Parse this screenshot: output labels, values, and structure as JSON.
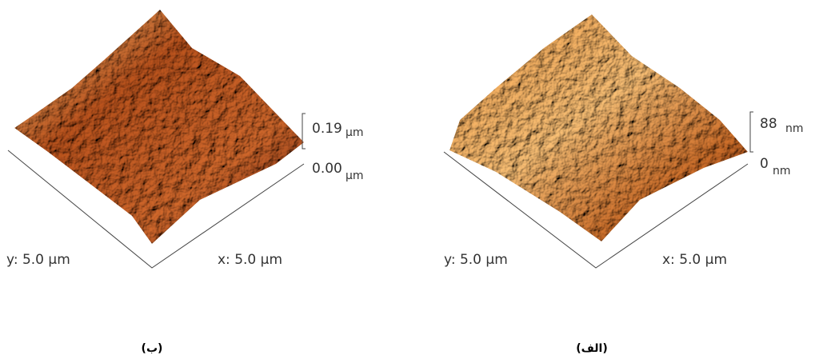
{
  "panels": [
    {
      "z_max": "0.19",
      "z_max_unit": "µm",
      "z_min": "0.00",
      "z_min_unit": "µm",
      "y_label": "y: 5.0 µm",
      "x_label": "x: 5.0 µm",
      "caption": "(ب)"
    },
    {
      "z_max": "88",
      "z_max_unit": "nm",
      "z_min": "0",
      "z_min_unit": "nm",
      "y_label": "y: 5.0 µm",
      "x_label": "x: 5.0 µm",
      "caption": "(الف)"
    }
  ]
}
